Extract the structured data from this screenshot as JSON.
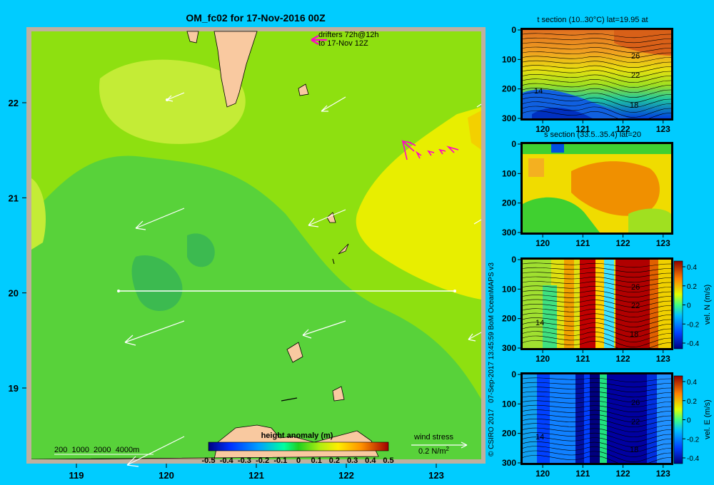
{
  "page": {
    "title": "OM_fc02 for 17-Nov-2016 00Z",
    "credit": "© CSIRO 2017   07-Sep-2017 13:45:59 BoM OceanMAPS v3",
    "background": "#00ccff"
  },
  "map": {
    "drifter_note": [
      "drifters 72h@12h",
      "to 17-Nov 12Z"
    ],
    "depth_legend": "200  1000  2000  4000m",
    "wind_stress_label": "wind stress",
    "wind_stress_value": "0.2 N/m",
    "wind_stress_exp": "2",
    "colorbar_title": "height anomaly (m)",
    "colorbar_ticks": [
      "-0.5",
      "-0.4",
      "-0.3",
      "-0.2",
      "-0.1",
      "0",
      "0.1",
      "0.2",
      "0.3",
      "0.4",
      "0.5"
    ],
    "colors": {
      "land": "#f9c9a0",
      "shelf": "#c7b097",
      "frame": "#bfb09f",
      "drifter": "#ff00cc",
      "arrow": "#ffffff"
    }
  },
  "chart_data": [
    {
      "type": "heatmap",
      "title": "OM_fc02 for 17-Nov-2016 00Z",
      "x": [
        118.5,
        123.5
      ],
      "y": [
        18.25,
        22.75
      ],
      "xticks": [
        119,
        120,
        121,
        122,
        123
      ],
      "yticks": [
        19,
        20,
        21,
        22
      ],
      "colorbar": {
        "title": "height anomaly (m)",
        "range": [
          -0.5,
          0.5
        ]
      },
      "section_line": {
        "lon": [
          119.5,
          123.0
        ],
        "lat": 20.0
      },
      "field": [
        {
          "level": 0.1,
          "region": "background"
        },
        {
          "level": 0.05,
          "region": "central low band"
        },
        {
          "level": 0.02,
          "region": "central minima near 120E 20-20.5N"
        },
        {
          "level": 0.2,
          "region": "north-west high near 120E 22N"
        },
        {
          "level": 0.25,
          "region": "east high 122.5-123.5E 20-21.5N"
        },
        {
          "level": 0.3,
          "region": "east edge maximum near 123.5E 21.6N"
        }
      ]
    },
    {
      "type": "heatmap",
      "title": "t section (10..30°C) lat=19.95 at",
      "xlabel": "",
      "ylabel": "",
      "xticks": [
        120,
        121,
        122,
        123
      ],
      "yticks": [
        0,
        100,
        200,
        300
      ],
      "xlim": [
        119.5,
        123.2
      ],
      "ylim": [
        300,
        0
      ],
      "contour_labels": [
        26,
        22,
        18,
        14
      ]
    },
    {
      "type": "heatmap",
      "title": "s section (33.5..35.4) lat=20",
      "xticks": [
        120,
        121,
        122,
        123
      ],
      "yticks": [
        0,
        100,
        200,
        300
      ],
      "xlim": [
        119.5,
        123.2
      ],
      "ylim": [
        300,
        0
      ]
    },
    {
      "type": "heatmap",
      "title": "",
      "xticks": [
        120,
        121,
        122,
        123
      ],
      "yticks": [
        0,
        100,
        200,
        300
      ],
      "xlim": [
        119.5,
        123.2
      ],
      "ylim": [
        300,
        0
      ],
      "contour_labels": [
        26,
        22,
        18,
        14
      ],
      "colorbar": {
        "label": "vel. N (m/s)",
        "ticks": [
          "0.4",
          "0.2",
          "0",
          "-0.2",
          "-0.4"
        ],
        "range": [
          -0.4,
          0.4
        ]
      }
    },
    {
      "type": "heatmap",
      "title": "",
      "xticks": [
        120,
        121,
        122,
        123
      ],
      "yticks": [
        0,
        100,
        200,
        300
      ],
      "xlim": [
        119.5,
        123.2
      ],
      "ylim": [
        300,
        0
      ],
      "contour_labels": [
        26,
        22,
        18,
        14
      ],
      "colorbar": {
        "label": "vel. E (m/s)",
        "ticks": [
          "0.4",
          "0.2",
          "0",
          "-0.2",
          "-0.4"
        ],
        "range": [
          -0.4,
          0.4
        ]
      }
    }
  ]
}
